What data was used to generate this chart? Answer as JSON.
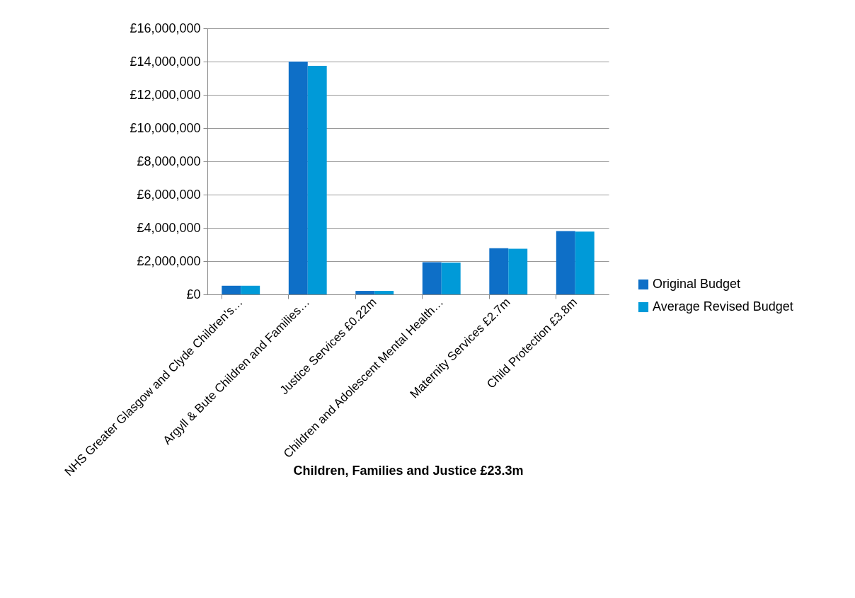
{
  "chart_data": {
    "type": "bar",
    "xlabel": "Children, Families and Justice £23.3m",
    "categories": [
      "NHS Greater Glasgow and Clyde Children's…",
      "Argyll & Bute Children and Families…",
      "Justice Services £0.22m",
      "Children and Adolescent Mental Health…",
      "Maternity Services £2.7m",
      "Child Protection £3.8m"
    ],
    "series": [
      {
        "name": "Original Budget",
        "color": "#0e6fc7",
        "values": [
          520000,
          14000000,
          210000,
          1940000,
          2780000,
          3810000
        ]
      },
      {
        "name": "Average Revised Budget",
        "color": "#009ad8",
        "values": [
          520000,
          13750000,
          210000,
          1920000,
          2750000,
          3780000
        ]
      }
    ],
    "ylim": [
      0,
      16000000
    ],
    "yticks": [
      {
        "value": 0,
        "label": "£0"
      },
      {
        "value": 2000000,
        "label": "£2,000,000"
      },
      {
        "value": 4000000,
        "label": "£4,000,000"
      },
      {
        "value": 6000000,
        "label": "£6,000,000"
      },
      {
        "value": 8000000,
        "label": "£8,000,000"
      },
      {
        "value": 10000000,
        "label": "£10,000,000"
      },
      {
        "value": 12000000,
        "label": "£12,000,000"
      },
      {
        "value": 14000000,
        "label": "£14,000,000"
      },
      {
        "value": 16000000,
        "label": "£16,000,000"
      }
    ],
    "grid": "y",
    "legend": "right"
  }
}
